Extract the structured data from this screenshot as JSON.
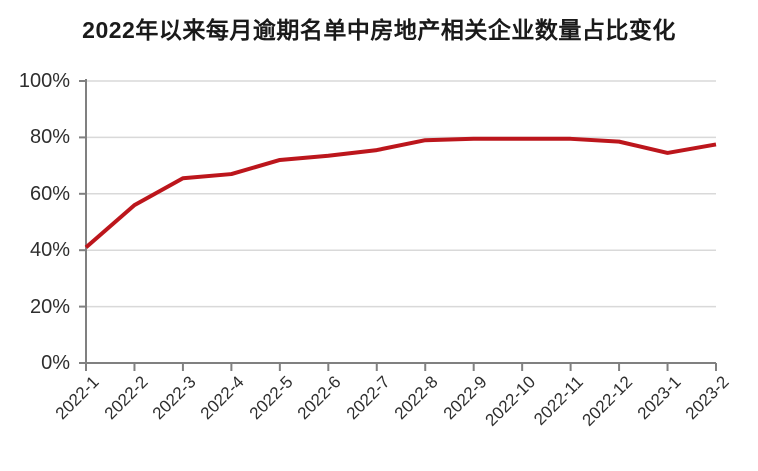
{
  "chart_data": {
    "type": "line",
    "title": "2022年以来每月逾期名单中房地产相关企业数量占比变化",
    "categories": [
      "2022-1",
      "2022-2",
      "2022-3",
      "2022-4",
      "2022-5",
      "2022-6",
      "2022-7",
      "2022-8",
      "2022-9",
      "2022-10",
      "2022-11",
      "2022-12",
      "2023-1",
      "2023-2"
    ],
    "values": [
      41,
      56,
      65.5,
      67,
      72,
      73.5,
      75.5,
      79,
      79.5,
      79.5,
      79.5,
      78.5,
      74.5,
      77.5
    ],
    "ylim": [
      0,
      100
    ],
    "yticks": [
      0,
      20,
      40,
      60,
      80,
      100
    ],
    "ytick_labels": [
      "0%",
      "20%",
      "40%",
      "60%",
      "80%",
      "100%"
    ],
    "xlabel": "",
    "ylabel": "",
    "legend": "none",
    "grid": "horizontal",
    "x_label_rotation_deg": -45,
    "colors": {
      "line": "#bc161c",
      "axis": "#808080",
      "gridline": "#d9d9d9",
      "tick_label": "#2e2e2e",
      "title": "#1a1a1a",
      "background": "#ffffff"
    }
  }
}
